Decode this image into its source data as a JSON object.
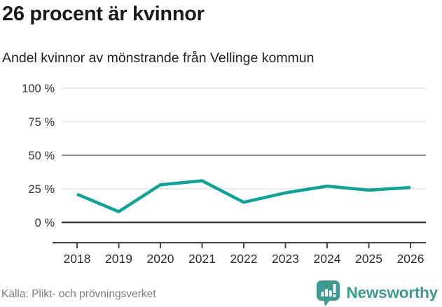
{
  "header": {
    "title": "26 procent är kvinnor",
    "subtitle": "Andel kvinnor av mönstrande från Vellinge kommun"
  },
  "chart_data": {
    "type": "line",
    "title": "26 procent är kvinnor",
    "subtitle": "Andel kvinnor av mönstrande från Vellinge kommun",
    "categories": [
      "2018",
      "2019",
      "2020",
      "2021",
      "2022",
      "2023",
      "2024",
      "2025",
      "2026"
    ],
    "values": [
      21,
      8,
      28,
      31,
      15,
      22,
      27,
      24,
      26
    ],
    "unit": "%",
    "ylim": [
      0,
      100
    ],
    "yticks": [
      0,
      25,
      50,
      75,
      100
    ],
    "ytick_labels": [
      "0 %",
      "25 %",
      "50 %",
      "75 %",
      "100 %"
    ],
    "xlabel": "",
    "ylabel": "",
    "grid": "horizontal",
    "legend": "none"
  },
  "colors": {
    "line": "#10a296",
    "grid_light": "#e2e2e2",
    "grid_medium": "#8f8f8f",
    "grid_dark": "#3d3d3d",
    "axis": "#4a4a4a",
    "tick_label": "#333333",
    "title_text": "#1a1a1a",
    "brand_teal": "#3e9a90",
    "source_gray": "#7d7d7d"
  },
  "footer": {
    "source": "Källa: Plikt- och prövningsverket",
    "brand": "Newsworthy"
  }
}
